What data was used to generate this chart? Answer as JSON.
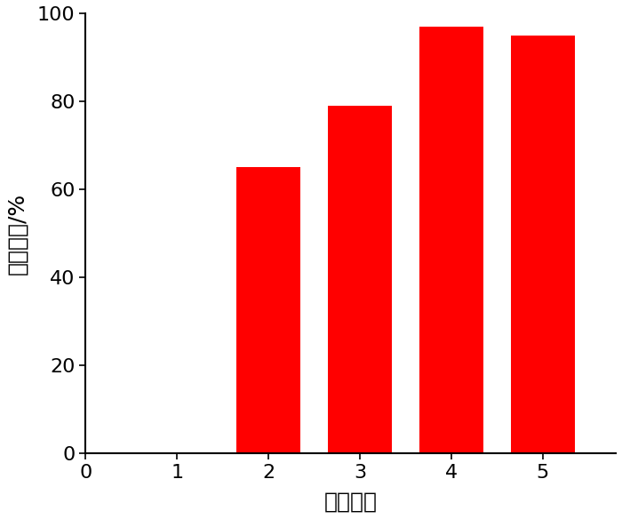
{
  "x_positions": [
    2,
    3,
    4,
    5
  ],
  "values": [
    65,
    79,
    97,
    95
  ],
  "bar_color": "#FF0000",
  "bar_width": 0.7,
  "xlim": [
    0,
    5.8
  ],
  "ylim": [
    0,
    100
  ],
  "xticks": [
    0,
    1,
    2,
    3,
    4,
    5
  ],
  "yticks": [
    0,
    20,
    40,
    60,
    80,
    100
  ],
  "xlabel": "样品编号",
  "ylabel": "活化指数/%",
  "xlabel_fontsize": 18,
  "ylabel_fontsize": 18,
  "tick_fontsize": 16,
  "background_color": "#ffffff",
  "spine_linewidth": 1.5
}
